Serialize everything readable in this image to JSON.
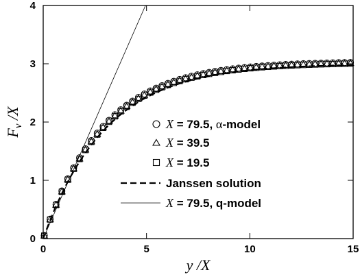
{
  "chart_data": {
    "type": "scatter",
    "xlabel": {
      "main": "y",
      "sep": " /",
      "denom": "X"
    },
    "ylabel": {
      "main": "F",
      "sub": "v",
      "sep": " /",
      "denom": "X"
    },
    "xlim": [
      0,
      15
    ],
    "ylim": [
      0,
      4
    ],
    "xticks": [
      0,
      5,
      10,
      15
    ],
    "yticks": [
      0,
      1,
      2,
      3,
      4
    ],
    "grid": false,
    "legend_position": "center-right",
    "series": [
      {
        "name": "X = 79.5, α-model",
        "legend": {
          "var": "X",
          "rest": " = 79.5, ",
          "alpha": "α",
          "tail": "-model"
        },
        "marker": "circle",
        "saturation": 3.04,
        "rate": 0.346
      },
      {
        "name": "X = 39.5",
        "legend": {
          "var": "X",
          "rest": " = 39.5"
        },
        "marker": "triangle",
        "saturation": 3.03,
        "rate": 0.343
      },
      {
        "name": "X = 19.5",
        "legend": {
          "var": "X",
          "rest": " = 19.5"
        },
        "marker": "square",
        "saturation": 3.02,
        "rate": 0.342
      },
      {
        "name": "Janssen solution",
        "legend": {
          "text": "Janssen solution"
        },
        "style": "dashed",
        "saturation": 3.0,
        "rate": 0.33
      },
      {
        "name": "X = 79.5, q-model",
        "legend": {
          "var": "X",
          "rest": " = 79.5, q-model"
        },
        "style": "thin-line",
        "x": [
          0,
          4.95
        ],
        "y": [
          0,
          4.0
        ]
      }
    ]
  }
}
